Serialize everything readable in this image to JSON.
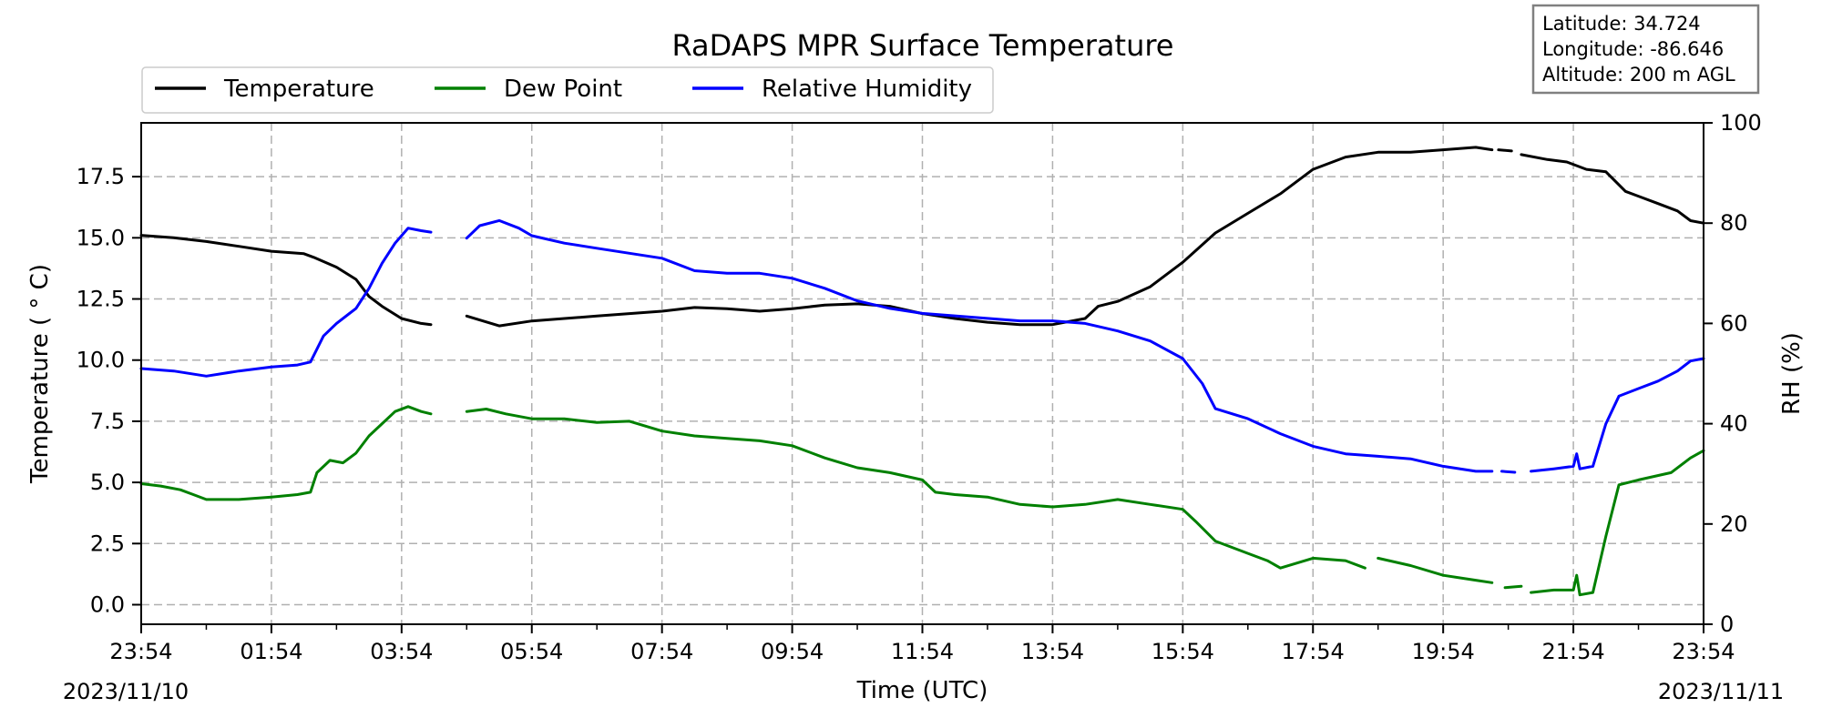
{
  "chart_data": {
    "type": "line",
    "title": "RaDAPS MPR Surface Temperature",
    "xlabel": "Time (UTC)",
    "ylabel_left": "Temperature ($^\\circ$C)",
    "ylabel_left_display": "Temperature ( ° C)",
    "ylabel_right": "RH (%)",
    "x_unit": "hours since 2023/11/10 23:54 UTC",
    "xlim": [
      0,
      24
    ],
    "ylim_left": [
      -0.8,
      19.7
    ],
    "ylim_right": [
      0,
      100
    ],
    "x_ticks": [
      {
        "x": 0,
        "label": "23:54"
      },
      {
        "x": 2,
        "label": "01:54"
      },
      {
        "x": 4,
        "label": "03:54"
      },
      {
        "x": 6,
        "label": "05:54"
      },
      {
        "x": 8,
        "label": "07:54"
      },
      {
        "x": 10,
        "label": "09:54"
      },
      {
        "x": 12,
        "label": "11:54"
      },
      {
        "x": 14,
        "label": "13:54"
      },
      {
        "x": 16,
        "label": "15:54"
      },
      {
        "x": 18,
        "label": "17:54"
      },
      {
        "x": 20,
        "label": "19:54"
      },
      {
        "x": 22,
        "label": "21:54"
      },
      {
        "x": 24,
        "label": "23:54"
      }
    ],
    "x_minor_ticks": [
      1,
      3,
      5,
      7,
      9,
      11,
      13,
      15,
      17,
      19,
      21,
      23
    ],
    "y_ticks_left": [
      0.0,
      2.5,
      5.0,
      7.5,
      10.0,
      12.5,
      15.0,
      17.5
    ],
    "y_tick_labels_left": [
      "0.0",
      "2.5",
      "5.0",
      "7.5",
      "10.0",
      "12.5",
      "15.0",
      "17.5"
    ],
    "y_ticks_right": [
      0,
      20,
      40,
      60,
      80,
      100
    ],
    "y_tick_labels_right": [
      "0",
      "20",
      "40",
      "60",
      "80",
      "100"
    ],
    "date_labels": {
      "start": "2023/11/10",
      "end": "2023/11/11"
    },
    "grid": true,
    "legend_position": "top-left, above plot",
    "info_box": {
      "position": "top-right",
      "lines": [
        "Latitude: 34.724",
        "Longitude: -86.646",
        "Altitude: 200 m AGL"
      ]
    },
    "series": [
      {
        "name": "Temperature",
        "axis": "left",
        "color": "#000000",
        "segments": [
          [
            [
              0.0,
              15.1
            ],
            [
              0.5,
              15.0
            ],
            [
              1.0,
              14.85
            ],
            [
              1.5,
              14.65
            ],
            [
              2.0,
              14.45
            ],
            [
              2.5,
              14.35
            ],
            [
              2.65,
              14.2
            ],
            [
              3.0,
              13.8
            ],
            [
              3.3,
              13.3
            ],
            [
              3.5,
              12.6
            ],
            [
              3.7,
              12.2
            ],
            [
              4.0,
              11.7
            ],
            [
              4.3,
              11.5
            ],
            [
              4.45,
              11.45
            ]
          ],
          [
            [
              5.0,
              11.8
            ],
            [
              5.5,
              11.4
            ],
            [
              6.0,
              11.6
            ],
            [
              6.5,
              11.7
            ],
            [
              7.0,
              11.8
            ],
            [
              7.5,
              11.9
            ],
            [
              8.0,
              12.0
            ],
            [
              8.5,
              12.15
            ],
            [
              9.0,
              12.1
            ],
            [
              9.5,
              12.0
            ],
            [
              10.0,
              12.1
            ],
            [
              10.5,
              12.25
            ],
            [
              11.0,
              12.3
            ],
            [
              11.5,
              12.2
            ],
            [
              12.0,
              11.9
            ],
            [
              12.5,
              11.7
            ],
            [
              13.0,
              11.55
            ],
            [
              13.5,
              11.45
            ],
            [
              14.0,
              11.45
            ],
            [
              14.5,
              11.7
            ],
            [
              14.7,
              12.2
            ],
            [
              15.0,
              12.4
            ],
            [
              15.5,
              13.0
            ],
            [
              16.0,
              14.0
            ],
            [
              16.5,
              15.2
            ],
            [
              17.0,
              16.0
            ],
            [
              17.5,
              16.8
            ],
            [
              18.0,
              17.8
            ],
            [
              18.5,
              18.3
            ],
            [
              19.0,
              18.5
            ],
            [
              19.5,
              18.5
            ],
            [
              20.0,
              18.6
            ],
            [
              20.5,
              18.7
            ],
            [
              20.75,
              18.6
            ]
          ],
          [
            [
              20.85,
              18.6
            ],
            [
              21.05,
              18.55
            ]
          ],
          [
            [
              21.2,
              18.4
            ],
            [
              21.6,
              18.2
            ],
            [
              21.9,
              18.1
            ],
            [
              22.2,
              17.8
            ],
            [
              22.5,
              17.7
            ],
            [
              22.8,
              16.9
            ],
            [
              23.0,
              16.7
            ],
            [
              23.3,
              16.4
            ],
            [
              23.6,
              16.1
            ],
            [
              23.8,
              15.7
            ],
            [
              24.0,
              15.6
            ]
          ]
        ]
      },
      {
        "name": "Dew Point",
        "axis": "left",
        "color": "#008000",
        "segments": [
          [
            [
              0.0,
              4.95
            ],
            [
              0.3,
              4.85
            ],
            [
              0.6,
              4.7
            ],
            [
              0.8,
              4.5
            ],
            [
              1.0,
              4.3
            ],
            [
              1.5,
              4.3
            ],
            [
              2.0,
              4.4
            ],
            [
              2.4,
              4.5
            ],
            [
              2.6,
              4.6
            ],
            [
              2.7,
              5.4
            ],
            [
              2.9,
              5.9
            ],
            [
              3.1,
              5.8
            ],
            [
              3.3,
              6.2
            ],
            [
              3.5,
              6.9
            ],
            [
              3.7,
              7.4
            ],
            [
              3.9,
              7.9
            ],
            [
              4.1,
              8.1
            ],
            [
              4.3,
              7.9
            ],
            [
              4.45,
              7.8
            ]
          ],
          [
            [
              5.0,
              7.9
            ],
            [
              5.3,
              8.0
            ],
            [
              5.6,
              7.8
            ],
            [
              6.0,
              7.6
            ],
            [
              6.5,
              7.6
            ],
            [
              7.0,
              7.45
            ],
            [
              7.5,
              7.5
            ],
            [
              8.0,
              7.1
            ],
            [
              8.5,
              6.9
            ],
            [
              9.0,
              6.8
            ],
            [
              9.5,
              6.7
            ],
            [
              10.0,
              6.5
            ],
            [
              10.5,
              6.0
            ],
            [
              11.0,
              5.6
            ],
            [
              11.5,
              5.4
            ],
            [
              12.0,
              5.1
            ],
            [
              12.2,
              4.6
            ],
            [
              12.5,
              4.5
            ],
            [
              13.0,
              4.4
            ],
            [
              13.5,
              4.1
            ],
            [
              14.0,
              4.0
            ],
            [
              14.5,
              4.1
            ],
            [
              15.0,
              4.3
            ],
            [
              15.5,
              4.1
            ],
            [
              16.0,
              3.9
            ],
            [
              16.2,
              3.4
            ],
            [
              16.5,
              2.6
            ],
            [
              17.0,
              2.1
            ],
            [
              17.3,
              1.8
            ],
            [
              17.5,
              1.5
            ],
            [
              18.0,
              1.9
            ],
            [
              18.5,
              1.8
            ],
            [
              18.8,
              1.5
            ]
          ],
          [
            [
              19.0,
              1.9
            ],
            [
              19.5,
              1.6
            ],
            [
              20.0,
              1.2
            ],
            [
              20.5,
              1.0
            ],
            [
              20.75,
              0.9
            ]
          ],
          [
            [
              20.95,
              0.7
            ],
            [
              21.2,
              0.75
            ]
          ],
          [
            [
              21.35,
              0.5
            ],
            [
              21.7,
              0.6
            ],
            [
              22.0,
              0.6
            ],
            [
              22.05,
              1.2
            ],
            [
              22.1,
              0.4
            ],
            [
              22.3,
              0.5
            ],
            [
              22.5,
              2.8
            ],
            [
              22.7,
              4.9
            ],
            [
              23.0,
              5.1
            ],
            [
              23.5,
              5.4
            ],
            [
              23.8,
              6.0
            ],
            [
              24.0,
              6.3
            ]
          ]
        ]
      },
      {
        "name": "Relative Humidity",
        "axis": "right",
        "color": "#0000ff",
        "segments": [
          [
            [
              0.0,
              51.0
            ],
            [
              0.5,
              50.5
            ],
            [
              1.0,
              49.5
            ],
            [
              1.5,
              50.5
            ],
            [
              2.0,
              51.3
            ],
            [
              2.4,
              51.7
            ],
            [
              2.6,
              52.3
            ],
            [
              2.8,
              57.5
            ],
            [
              3.0,
              60.0
            ],
            [
              3.3,
              63.0
            ],
            [
              3.5,
              67.0
            ],
            [
              3.7,
              72.0
            ],
            [
              3.9,
              76.0
            ],
            [
              4.1,
              79.0
            ],
            [
              4.3,
              78.5
            ],
            [
              4.45,
              78.2
            ]
          ],
          [
            [
              5.0,
              77.0
            ],
            [
              5.2,
              79.5
            ],
            [
              5.5,
              80.5
            ],
            [
              5.8,
              79.0
            ],
            [
              6.0,
              77.5
            ],
            [
              6.5,
              76.0
            ],
            [
              7.0,
              75.0
            ],
            [
              7.5,
              74.0
            ],
            [
              8.0,
              73.0
            ],
            [
              8.5,
              70.5
            ],
            [
              9.0,
              70.0
            ],
            [
              9.5,
              70.0
            ],
            [
              10.0,
              69.0
            ],
            [
              10.5,
              67.0
            ],
            [
              11.0,
              64.5
            ],
            [
              11.5,
              63.0
            ],
            [
              12.0,
              62.0
            ],
            [
              12.5,
              61.5
            ],
            [
              13.0,
              61.0
            ],
            [
              13.5,
              60.5
            ],
            [
              14.0,
              60.5
            ],
            [
              14.5,
              60.0
            ],
            [
              15.0,
              58.5
            ],
            [
              15.5,
              56.5
            ],
            [
              16.0,
              53.0
            ],
            [
              16.3,
              48.0
            ],
            [
              16.5,
              43.0
            ],
            [
              17.0,
              41.0
            ],
            [
              17.5,
              38.0
            ],
            [
              18.0,
              35.5
            ],
            [
              18.5,
              34.0
            ],
            [
              19.0,
              33.5
            ],
            [
              19.5,
              33.0
            ],
            [
              20.0,
              31.5
            ],
            [
              20.5,
              30.5
            ],
            [
              20.75,
              30.5
            ]
          ],
          [
            [
              20.9,
              30.5
            ],
            [
              21.1,
              30.3
            ]
          ],
          [
            [
              21.35,
              30.5
            ],
            [
              21.7,
              31.0
            ],
            [
              22.0,
              31.5
            ],
            [
              22.05,
              34.0
            ],
            [
              22.1,
              31.0
            ],
            [
              22.3,
              31.5
            ],
            [
              22.5,
              40.0
            ],
            [
              22.7,
              45.5
            ],
            [
              23.0,
              47.0
            ],
            [
              23.3,
              48.5
            ],
            [
              23.6,
              50.5
            ],
            [
              23.8,
              52.5
            ],
            [
              24.0,
              53.0
            ]
          ]
        ]
      }
    ]
  }
}
